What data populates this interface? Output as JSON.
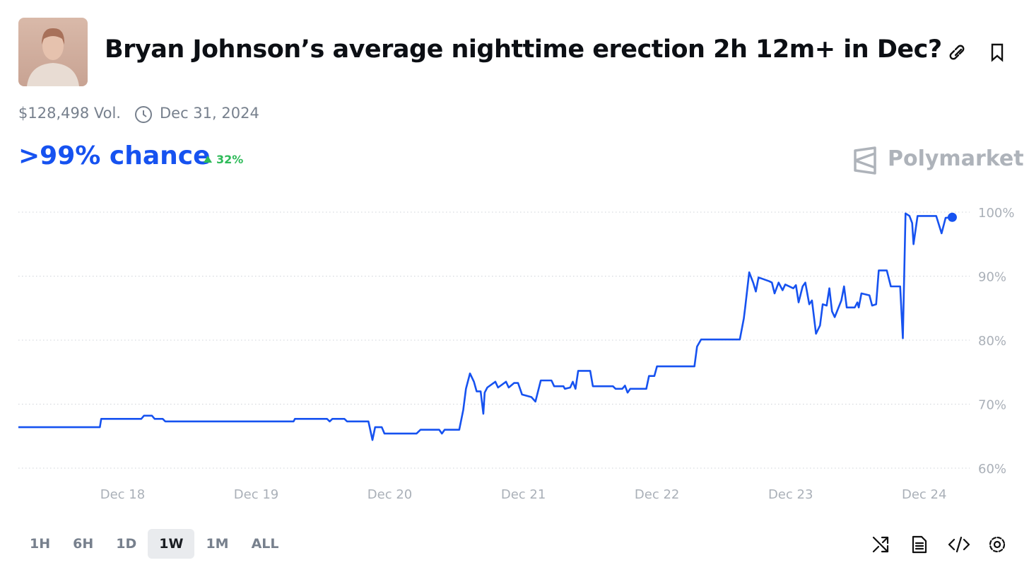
{
  "header": {
    "title": "Bryan Johnson’s average nighttime erection 2h 12m+ in Dec?",
    "volume": "$128,498 Vol.",
    "end_date": "Dec 31, 2024",
    "chance": ">99% chance",
    "change": "32%",
    "brand": "Polymarket"
  },
  "time_ranges": [
    "1H",
    "6H",
    "1D",
    "1W",
    "1M",
    "ALL"
  ],
  "chart_data": {
    "type": "line",
    "color": "#1652f0",
    "grid": true,
    "x": [
      17.22,
      17.83,
      17.84,
      18.14,
      18.16,
      18.22,
      18.24,
      18.3,
      18.32,
      19.28,
      19.29,
      19.53,
      19.55,
      19.57,
      19.66,
      19.68,
      19.84,
      19.87,
      19.89,
      19.94,
      19.96,
      20.2,
      20.23,
      20.37,
      20.39,
      20.41,
      20.52,
      20.55,
      20.57,
      20.6,
      20.63,
      20.65,
      20.68,
      20.7,
      20.71,
      20.73,
      20.79,
      20.81,
      20.87,
      20.89,
      20.93,
      20.96,
      20.99,
      21.06,
      21.09,
      21.13,
      21.21,
      21.23,
      21.3,
      21.31,
      21.35,
      21.37,
      21.39,
      21.41,
      21.5,
      21.52,
      21.67,
      21.69,
      21.74,
      21.76,
      21.78,
      21.8,
      21.92,
      21.94,
      21.98,
      22.0,
      22.28,
      22.3,
      22.33,
      22.62,
      22.65,
      22.66,
      22.69,
      22.72,
      22.74,
      22.76,
      22.84,
      22.86,
      22.88,
      22.91,
      22.94,
      22.96,
      23.02,
      23.04,
      23.06,
      23.09,
      23.11,
      23.14,
      23.16,
      23.19,
      23.22,
      23.24,
      23.27,
      23.29,
      23.31,
      23.33,
      23.38,
      23.4,
      23.42,
      23.48,
      23.5,
      23.51,
      23.53,
      23.59,
      23.61,
      23.64,
      23.66,
      23.72,
      23.75,
      23.82,
      23.84,
      23.86,
      23.89,
      23.91,
      23.92,
      23.95,
      24.09,
      24.13,
      24.16,
      24.21
    ],
    "values": [
      66.4,
      66.4,
      67.7,
      67.7,
      68.2,
      68.2,
      67.7,
      67.7,
      67.3,
      67.3,
      67.7,
      67.7,
      67.3,
      67.7,
      67.7,
      67.3,
      67.3,
      64.4,
      66.4,
      66.4,
      65.4,
      65.4,
      66.0,
      66.0,
      65.4,
      66.0,
      66.0,
      69.1,
      72.4,
      74.8,
      73.5,
      72.0,
      72.0,
      68.5,
      71.8,
      72.6,
      73.5,
      72.6,
      73.5,
      72.6,
      73.3,
      73.3,
      71.5,
      71.1,
      70.4,
      73.7,
      73.7,
      72.8,
      72.8,
      72.4,
      72.6,
      73.5,
      72.4,
      75.2,
      75.2,
      72.8,
      72.8,
      72.4,
      72.4,
      72.9,
      71.8,
      72.4,
      72.4,
      74.4,
      74.4,
      75.9,
      75.9,
      79.0,
      80.1,
      80.1,
      83.4,
      85.1,
      90.6,
      89.0,
      87.6,
      89.8,
      89.2,
      89.0,
      87.3,
      89.0,
      87.8,
      88.7,
      88.1,
      88.6,
      85.9,
      88.4,
      89.0,
      85.6,
      86.2,
      81.0,
      82.3,
      85.6,
      85.4,
      88.1,
      84.5,
      83.6,
      86.2,
      88.4,
      85.1,
      85.1,
      85.9,
      85.1,
      87.3,
      87.0,
      85.4,
      85.6,
      90.9,
      90.9,
      88.4,
      88.4,
      80.3,
      99.8,
      99.4,
      98.3,
      95.0,
      99.4,
      99.4,
      96.7,
      99.1,
      99.2
    ],
    "xlim": [
      17.22,
      24.34
    ],
    "ylim": [
      60,
      100
    ],
    "xticks": [
      {
        "value": 18,
        "label": "Dec 18"
      },
      {
        "value": 19,
        "label": "Dec 19"
      },
      {
        "value": 20,
        "label": "Dec 20"
      },
      {
        "value": 21,
        "label": "Dec 21"
      },
      {
        "value": 22,
        "label": "Dec 22"
      },
      {
        "value": 23,
        "label": "Dec 23"
      },
      {
        "value": 24,
        "label": "Dec 24"
      }
    ],
    "yticks": [
      {
        "value": 60,
        "label": "60%"
      },
      {
        "value": 70,
        "label": "70%"
      },
      {
        "value": 80,
        "label": "80%"
      },
      {
        "value": 90,
        "label": "90%"
      },
      {
        "value": 100,
        "label": "100%"
      }
    ]
  }
}
